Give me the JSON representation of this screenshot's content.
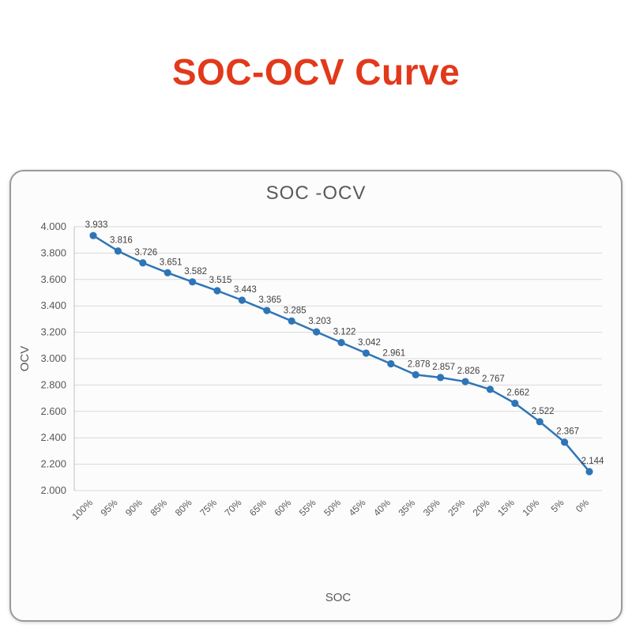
{
  "page": {
    "title": "SOC-OCV Curve",
    "title_color": "#e2391b"
  },
  "chart_data": {
    "type": "line",
    "title": "SOC -OCV",
    "xlabel": "SOC",
    "ylabel": "OCV",
    "categories": [
      "100%",
      "95%",
      "90%",
      "85%",
      "80%",
      "75%",
      "70%",
      "65%",
      "60%",
      "55%",
      "50%",
      "45%",
      "40%",
      "35%",
      "30%",
      "25%",
      "20%",
      "15%",
      "10%",
      "5%",
      "0%"
    ],
    "values": [
      3.933,
      3.816,
      3.726,
      3.651,
      3.582,
      3.515,
      3.443,
      3.365,
      3.285,
      3.203,
      3.122,
      3.042,
      2.961,
      2.878,
      2.857,
      2.826,
      2.767,
      2.662,
      2.522,
      2.367,
      2.144
    ],
    "ylim": [
      2.0,
      4.0
    ],
    "ytick_step": 0.2,
    "ytick_format_decimals": 3,
    "grid": true,
    "legend": "none",
    "data_labels": true,
    "line_color": "#2e75b6",
    "marker": "circle"
  }
}
